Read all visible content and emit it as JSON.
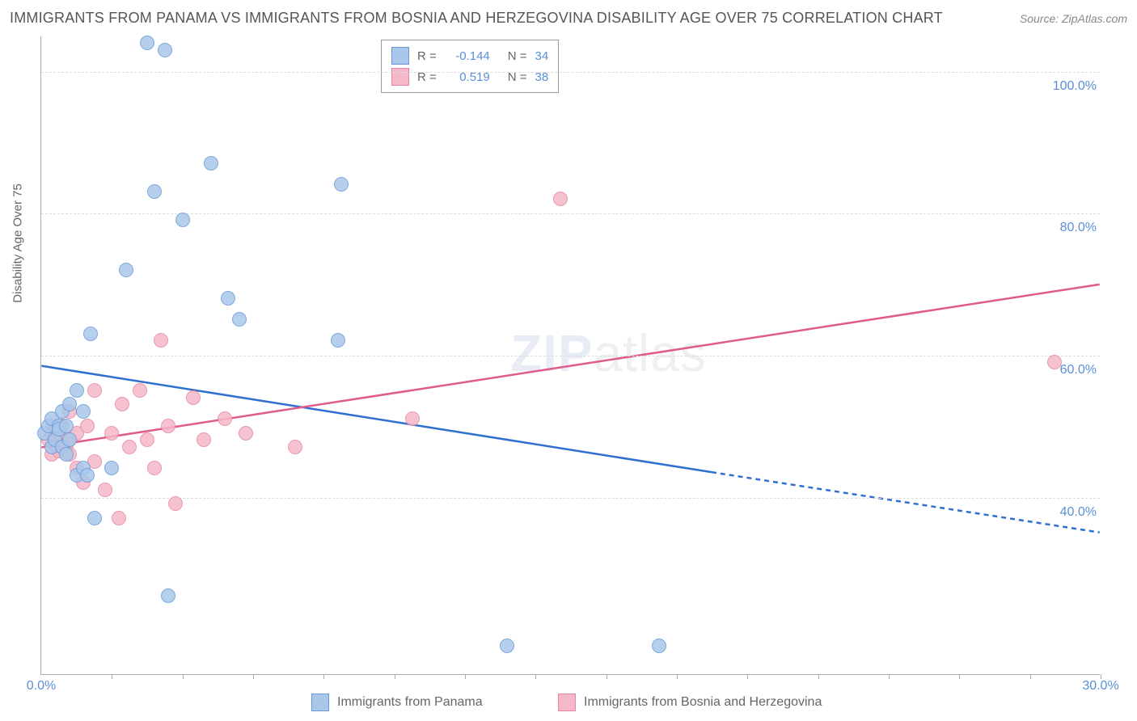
{
  "title": "IMMIGRANTS FROM PANAMA VS IMMIGRANTS FROM BOSNIA AND HERZEGOVINA DISABILITY AGE OVER 75 CORRELATION CHART",
  "source": "Source: ZipAtlas.com",
  "y_axis_label": "Disability Age Over 75",
  "watermark_bold": "ZIP",
  "watermark_light": "atlas",
  "chart": {
    "type": "scatter",
    "xlim": [
      0,
      30
    ],
    "ylim": [
      15,
      105
    ],
    "x_ticks_minor_step": 2,
    "x_labels": [
      {
        "v": 0,
        "label": "0.0%"
      },
      {
        "v": 30,
        "label": "30.0%"
      }
    ],
    "y_gridlines": [
      {
        "v": 40,
        "label": "40.0%"
      },
      {
        "v": 60,
        "label": "60.0%"
      },
      {
        "v": 80,
        "label": "80.0%"
      },
      {
        "v": 100,
        "label": "100.0%"
      }
    ],
    "marker_radius": 9,
    "marker_border_width": 1,
    "background_color": "#ffffff",
    "grid_color": "#dddddd",
    "axis_color": "#aaaaaa"
  },
  "series_a": {
    "name": "Immigrants from Panama",
    "fill": "#a9c7ea",
    "stroke": "#6a9bd8",
    "line_color": "#2e6fd0",
    "R": "-0.144",
    "N": "34",
    "trend": {
      "x1": 0,
      "y1": 58.5,
      "x2_solid": 19,
      "y2_solid": 43.5,
      "x2": 30,
      "y2": 35
    },
    "points": [
      [
        0.1,
        49
      ],
      [
        0.2,
        50
      ],
      [
        0.3,
        47
      ],
      [
        0.3,
        51
      ],
      [
        0.4,
        48
      ],
      [
        0.5,
        50
      ],
      [
        0.5,
        49.5
      ],
      [
        0.6,
        47
      ],
      [
        0.6,
        52
      ],
      [
        0.7,
        46
      ],
      [
        0.7,
        50
      ],
      [
        0.8,
        53
      ],
      [
        0.8,
        48
      ],
      [
        1.0,
        55
      ],
      [
        1.0,
        43
      ],
      [
        1.2,
        44
      ],
      [
        1.2,
        52
      ],
      [
        1.3,
        43
      ],
      [
        1.4,
        63
      ],
      [
        1.5,
        37
      ],
      [
        2.0,
        44
      ],
      [
        2.4,
        72
      ],
      [
        3.0,
        104
      ],
      [
        3.2,
        83
      ],
      [
        3.5,
        103
      ],
      [
        3.6,
        26
      ],
      [
        4.0,
        79
      ],
      [
        4.8,
        87
      ],
      [
        5.3,
        68
      ],
      [
        5.6,
        65
      ],
      [
        8.4,
        62
      ],
      [
        8.5,
        84
      ],
      [
        13.2,
        19
      ],
      [
        17.5,
        19
      ]
    ]
  },
  "series_b": {
    "name": "Immigrants from Bosnia and Herzegovina",
    "fill": "#f5b8c8",
    "stroke": "#e787a3",
    "line_color": "#e05a8a",
    "R": "0.519",
    "N": "38",
    "trend": {
      "x1": 0,
      "y1": 47,
      "x2": 30,
      "y2": 70
    },
    "points": [
      [
        0.2,
        48
      ],
      [
        0.3,
        49
      ],
      [
        0.3,
        46
      ],
      [
        0.4,
        48.5
      ],
      [
        0.4,
        50
      ],
      [
        0.5,
        46.5
      ],
      [
        0.5,
        49
      ],
      [
        0.6,
        47
      ],
      [
        0.6,
        50
      ],
      [
        0.7,
        47
      ],
      [
        0.8,
        48
      ],
      [
        0.8,
        46
      ],
      [
        0.8,
        52
      ],
      [
        1.0,
        49
      ],
      [
        1.0,
        44
      ],
      [
        1.2,
        42
      ],
      [
        1.3,
        50
      ],
      [
        1.5,
        45
      ],
      [
        1.5,
        55
      ],
      [
        1.8,
        41
      ],
      [
        2.0,
        49
      ],
      [
        2.2,
        37
      ],
      [
        2.3,
        53
      ],
      [
        2.5,
        47
      ],
      [
        2.8,
        55
      ],
      [
        3.0,
        48
      ],
      [
        3.2,
        44
      ],
      [
        3.4,
        62
      ],
      [
        3.6,
        50
      ],
      [
        3.8,
        39
      ],
      [
        4.3,
        54
      ],
      [
        4.6,
        48
      ],
      [
        5.2,
        51
      ],
      [
        5.8,
        49
      ],
      [
        7.2,
        47
      ],
      [
        10.5,
        51
      ],
      [
        14.7,
        82
      ],
      [
        28.7,
        59
      ]
    ]
  },
  "legend_top": {
    "R_label": "R =",
    "N_label": "N ="
  }
}
